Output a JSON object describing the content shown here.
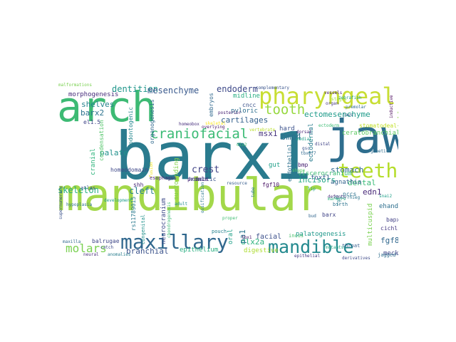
{
  "words": [
    {
      "text": "barx1",
      "color": "#2a7b8e"
    },
    {
      "text": "mandibular",
      "color": "#a3d84a"
    },
    {
      "text": "jaw",
      "color": "#2e6e8e"
    },
    {
      "text": "arch",
      "color": "#3dba74"
    },
    {
      "text": "pharyngeal",
      "color": "#c8de33"
    },
    {
      "text": "teeth",
      "color": "#b5dd2b"
    },
    {
      "text": "maxillary",
      "color": "#31688e"
    },
    {
      "text": "mandible",
      "color": "#23898e"
    },
    {
      "text": "craniofacial",
      "color": "#3bbb75"
    },
    {
      "text": "tooth",
      "color": "#97d83f"
    },
    {
      "text": "molars",
      "color": "#7ad151"
    },
    {
      "text": "skeleton",
      "color": "#29af7f"
    },
    {
      "text": "branchial",
      "color": "#3b528b"
    },
    {
      "text": "cleft",
      "color": "#277f8e"
    },
    {
      "text": "crest",
      "color": "#414487"
    },
    {
      "text": "dentition",
      "color": "#1f968b"
    },
    {
      "text": "mesenchyme",
      "color": "#38588c"
    },
    {
      "text": "endoderm",
      "color": "#3e4989"
    },
    {
      "text": "ectomesenchyme",
      "color": "#1e9b8a"
    },
    {
      "text": "shelves",
      "color": "#25848e"
    },
    {
      "text": "barx2",
      "color": "#2c728e"
    },
    {
      "text": "palate",
      "color": "#21918c"
    },
    {
      "text": "cartilages",
      "color": "#34618d"
    },
    {
      "text": "bmp4",
      "color": "#2d708e"
    },
    {
      "text": "msx1",
      "color": "#46337e"
    },
    {
      "text": "stomach",
      "color": "#306a8e"
    },
    {
      "text": "incisors",
      "color": "#22a785"
    },
    {
      "text": "dental",
      "color": "#3aba76"
    },
    {
      "text": "edn1",
      "color": "#482878"
    },
    {
      "text": "facial",
      "color": "#3c508b"
    },
    {
      "text": "fgf8",
      "color": "#31688e"
    },
    {
      "text": "dlx2a",
      "color": "#2db27d"
    },
    {
      "text": "pa1",
      "color": "#2a768e"
    },
    {
      "text": "digestive",
      "color": "#addc30"
    },
    {
      "text": "palatogenesis",
      "color": "#1f988b"
    },
    {
      "text": "epithelium",
      "color": "#28ae80"
    },
    {
      "text": "meckel",
      "color": "#3f4788"
    },
    {
      "text": "morphogenesis",
      "color": "#472d7b"
    },
    {
      "text": "homeodomain",
      "color": "#3f4889"
    },
    {
      "text": "surrounding",
      "color": "#84d44b"
    },
    {
      "text": "neurocranium",
      "color": "#3e4a89"
    },
    {
      "text": "viscerocranium",
      "color": "#3dbc74"
    },
    {
      "text": "agnathia",
      "color": "#33638d"
    },
    {
      "text": "foxf1",
      "color": "#365c8d"
    },
    {
      "text": "gut",
      "color": "#1f9f88"
    },
    {
      "text": "hard",
      "color": "#3b518b"
    },
    {
      "text": "pyloric",
      "color": "#2e6f8e"
    },
    {
      "text": "midline",
      "color": "#27ad81"
    },
    {
      "text": "cncc",
      "color": "#3b528b"
    },
    {
      "text": "ectodermal",
      "color": "#287c8e"
    },
    {
      "text": "ceratobranchial",
      "color": "#5ec962"
    },
    {
      "text": "stomatodeal",
      "color": "#c0df25"
    },
    {
      "text": "shelf",
      "color": "#8bd646"
    },
    {
      "text": "bapx1",
      "color": "#424086"
    },
    {
      "text": "ehand",
      "color": "#2e6f8e"
    },
    {
      "text": "cichlids",
      "color": "#453882"
    },
    {
      "text": "jagged-notch",
      "color": "#2e6e8e"
    },
    {
      "text": "multicuspid",
      "color": "#7ad151"
    },
    {
      "text": "rs11789015",
      "color": "#29798e"
    },
    {
      "text": "fgf10",
      "color": "#471063"
    },
    {
      "text": "bmp",
      "color": "#482173"
    },
    {
      "text": "endothelin1",
      "color": "#2d718e"
    },
    {
      "text": "homeotic",
      "color": "#3b528b"
    },
    {
      "text": "prdm1a",
      "color": "#482677"
    },
    {
      "text": "shh",
      "color": "#482878"
    },
    {
      "text": "balrugae",
      "color": "#3f4788"
    },
    {
      "text": "cranial",
      "color": "#2fb47c"
    },
    {
      "text": "condensation",
      "color": "#52c569"
    },
    {
      "text": "odontogenic",
      "color": "#24878e"
    },
    {
      "text": "organogenesis",
      "color": "#30698e"
    },
    {
      "text": "el1.5",
      "color": "#404588"
    },
    {
      "text": "atlas",
      "color": "#3b518b"
    },
    {
      "text": "esophagus",
      "color": "#482475"
    },
    {
      "text": "embryos",
      "color": "#30688e"
    },
    {
      "text": "nccs",
      "color": "#2c728e"
    },
    {
      "text": "barx",
      "color": "#414487"
    },
    {
      "text": "birth",
      "color": "#2c738e"
    },
    {
      "text": "throat",
      "color": "#365d8d"
    },
    {
      "text": "oral",
      "color": "#1fa088"
    },
    {
      "text": "pouch",
      "color": "#26828e"
    },
    {
      "text": "incus",
      "color": "#4ac16d"
    },
    {
      "text": "dlx2",
      "color": "#3fbc73"
    },
    {
      "text": "homeobox",
      "color": "#472f7d"
    },
    {
      "text": "posterior",
      "color": "#482173"
    },
    {
      "text": "organ",
      "color": "#453781"
    },
    {
      "text": "vertebrate",
      "color": "#b8de29"
    },
    {
      "text": "zebrafish",
      "color": "#1f9e89"
    },
    {
      "text": "dysmorphic",
      "color": "#2c738e"
    },
    {
      "text": "tbx1",
      "color": "#481769"
    },
    {
      "text": "catch",
      "color": "#3e4c8a"
    },
    {
      "text": "neural",
      "color": "#472c7a"
    },
    {
      "text": "maxilla",
      "color": "#30698e"
    },
    {
      "text": "supernumerary",
      "color": "#3b528b"
    },
    {
      "text": "development",
      "color": "#1e9c89"
    },
    {
      "text": "malformations",
      "color": "#7ad151"
    },
    {
      "text": "hypoplasia",
      "color": "#2d718e"
    },
    {
      "text": "overlying",
      "color": "#471365"
    },
    {
      "text": "complementary",
      "color": "#3a548c"
    },
    {
      "text": "skeletal",
      "color": "#fde725"
    },
    {
      "text": "congenital",
      "color": "#21918c"
    },
    {
      "text": "anomalies",
      "color": "#287d8e"
    },
    {
      "text": "derivatives",
      "color": "#3e4a89"
    },
    {
      "text": "mutants",
      "color": "#22a884"
    },
    {
      "text": "fusion",
      "color": "#efe51c"
    },
    {
      "text": "ossification",
      "color": "#2a788e"
    },
    {
      "text": "proper",
      "color": "#40bd72"
    },
    {
      "text": "resource",
      "color": "#365c8d"
    },
    {
      "text": "tube",
      "color": "#2a788e"
    },
    {
      "text": "chondrogenesis",
      "color": "#3dbc74"
    },
    {
      "text": "epithelial",
      "color": "#443983"
    },
    {
      "text": "adult",
      "color": "#228d8d"
    },
    {
      "text": "lip",
      "color": "#1f9e89"
    },
    {
      "text": "shape",
      "color": "#56c667"
    },
    {
      "text": "bud",
      "color": "#31668e"
    },
    {
      "text": "distal",
      "color": "#414487"
    },
    {
      "text": "medial",
      "color": "#1fa188"
    },
    {
      "text": "dorsal",
      "color": "#482576"
    },
    {
      "text": "tbx6/7",
      "color": "#30698e"
    },
    {
      "text": "dlx2/rhieg",
      "color": "#2b748e"
    },
    {
      "text": "snai2",
      "color": "#1fa088"
    },
    {
      "text": "gsc",
      "color": "#3a538b"
    },
    {
      "text": "fgf",
      "color": "#26828e"
    },
    {
      "text": "stages",
      "color": "#9fda3a"
    },
    {
      "text": "defects",
      "color": "#482979"
    },
    {
      "text": "genetic",
      "color": "#2e6d8e"
    },
    {
      "text": "inductive",
      "color": "#440154"
    },
    {
      "text": "premolar",
      "color": "#30698e"
    },
    {
      "text": "ectoderm",
      "color": "#3dbc74"
    },
    {
      "text": "jaws",
      "color": "#33628d"
    },
    {
      "text": "vessels",
      "color": "#481f70"
    },
    {
      "text": "markers",
      "color": "#2db27d"
    }
  ]
}
